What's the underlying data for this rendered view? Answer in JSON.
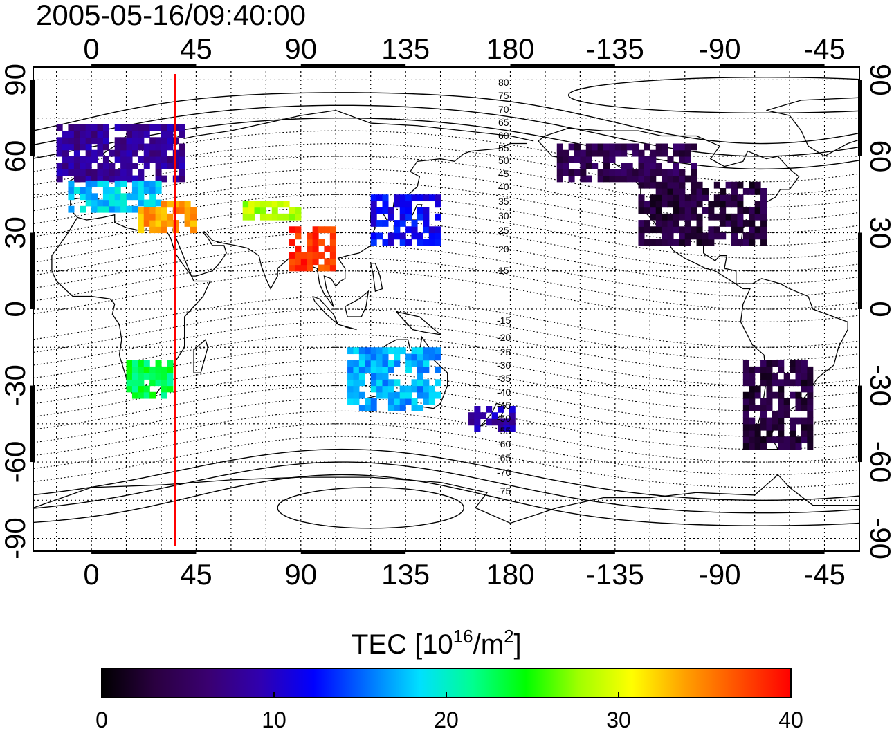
{
  "timestamp": "2005-05-16/09:40:00",
  "map": {
    "lon_labels_top": [
      "0",
      "45",
      "90",
      "135",
      "180",
      "-135",
      "-90",
      "-45"
    ],
    "lon_labels_bottom": [
      "0",
      "45",
      "90",
      "135",
      "180",
      "-135",
      "-90",
      "-45"
    ],
    "lon_ticks_values": [
      0,
      45,
      90,
      135,
      180,
      225,
      270,
      315
    ],
    "lon_range": [
      -25,
      330
    ],
    "lat_range": [
      -95,
      95
    ],
    "lat_labels": [
      "90",
      "60",
      "30",
      "0",
      "-30",
      "-60",
      "-90"
    ],
    "lat_ticks_values": [
      90,
      60,
      30,
      0,
      -30,
      -60,
      -90
    ],
    "grid": "dotted",
    "projection": "equirectangular",
    "meridian_marker": {
      "lon": 36,
      "color": "#ff0000"
    },
    "magnetic_contour_labels_north": [
      "80",
      "75",
      "70",
      "65",
      "60",
      "55",
      "50",
      "45",
      "40",
      "35",
      "30",
      "25",
      "20",
      "15"
    ],
    "magnetic_contour_labels_south": [
      "-15",
      "-20",
      "-25",
      "-30",
      "-35",
      "-40",
      "-45",
      "-50",
      "-55",
      "-60",
      "-65",
      "-70",
      "-75"
    ]
  },
  "colorbar": {
    "title_main": "TEC  [10",
    "title_sup1": "16",
    "title_mid": "/m",
    "title_sup2": "2",
    "title_end": "]",
    "tick_labels": [
      "0",
      "10",
      "20",
      "30",
      "40"
    ],
    "range": [
      0,
      40
    ],
    "colors": [
      "#000000",
      "#2a0040",
      "#3a0070",
      "#3000b0",
      "#0000ff",
      "#0070ff",
      "#00e0ff",
      "#00ff90",
      "#00ff00",
      "#a0ff00",
      "#ffff00",
      "#ffa000",
      "#ff5000",
      "#ff0000"
    ]
  },
  "chart_data": {
    "type": "heatmap",
    "title": "2005-05-16/09:40:00",
    "colorbar_label": "TEC [10^16/m^2]",
    "value_range": [
      0,
      40
    ],
    "regions": [
      {
        "lon_range": [
          -15,
          40
        ],
        "lat_range": [
          50,
          72
        ],
        "tec": 8
      },
      {
        "lon_range": [
          -10,
          30
        ],
        "lat_range": [
          38,
          50
        ],
        "tec": 18
      },
      {
        "lon_range": [
          20,
          45
        ],
        "lat_range": [
          30,
          42
        ],
        "tec": 34
      },
      {
        "lon_range": [
          65,
          90
        ],
        "lat_range": [
          35,
          42
        ],
        "tec": 28
      },
      {
        "lon_range": [
          85,
          105
        ],
        "lat_range": [
          15,
          32
        ],
        "tec": 38
      },
      {
        "lon_range": [
          120,
          150
        ],
        "lat_range": [
          25,
          45
        ],
        "tec": 12
      },
      {
        "lon_range": [
          15,
          35
        ],
        "lat_range": [
          -35,
          -22
        ],
        "tec": 23
      },
      {
        "lon_range": [
          110,
          150
        ],
        "lat_range": [
          -40,
          -15
        ],
        "tec": 17
      },
      {
        "lon_range": [
          162,
          180
        ],
        "lat_range": [
          -48,
          -38
        ],
        "tec": 9
      },
      {
        "lon_range": [
          235,
          290
        ],
        "lat_range": [
          25,
          50
        ],
        "tec": 3
      },
      {
        "lon_range": [
          200,
          260
        ],
        "lat_range": [
          50,
          65
        ],
        "tec": 4
      },
      {
        "lon_range": [
          280,
          310
        ],
        "lat_range": [
          -55,
          -20
        ],
        "tec": 3
      }
    ]
  }
}
